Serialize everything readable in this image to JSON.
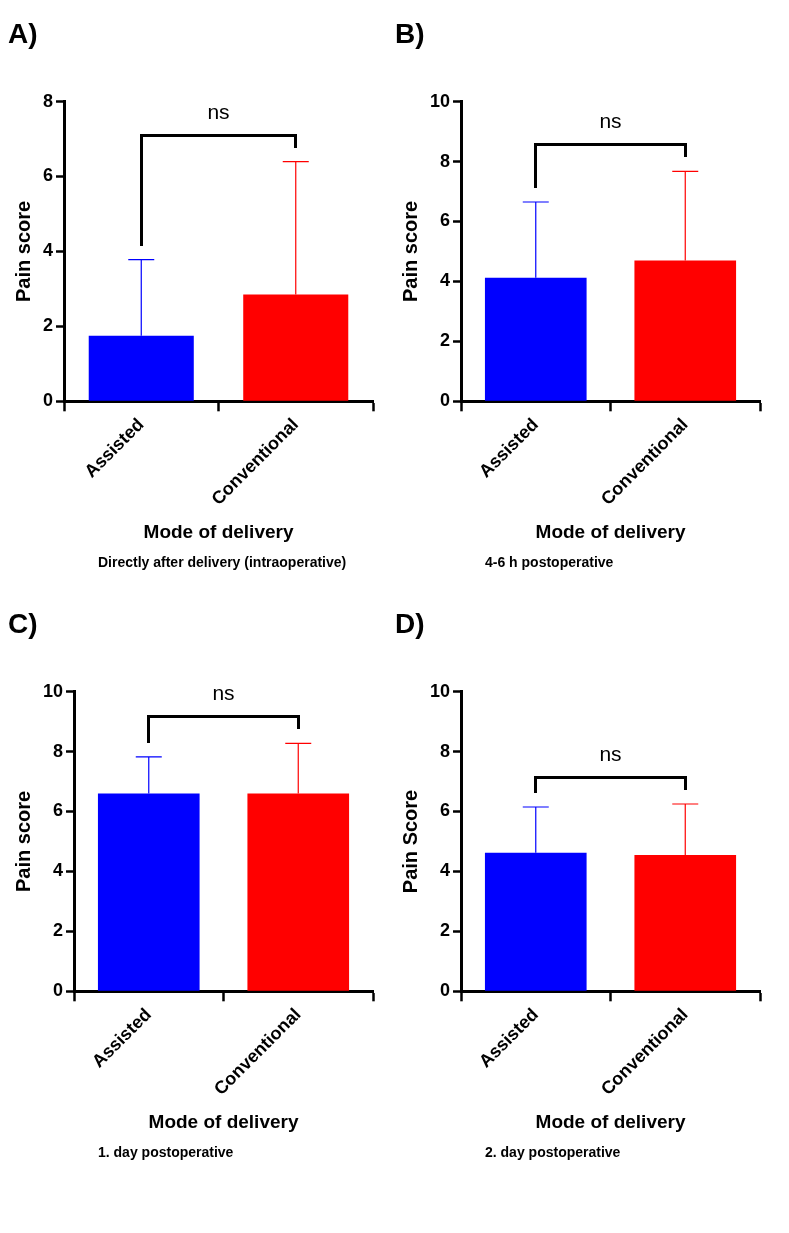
{
  "chart_data": [
    {
      "type": "bar",
      "title": "A)",
      "subtitle": "Directly after delivery (intraoperative)",
      "xlabel": "Mode of delivery",
      "ylabel": "Pain score",
      "categories": [
        "Assisted",
        "Conventional"
      ],
      "values": [
        1.75,
        2.85
      ],
      "colors": [
        "#0000ff",
        "#ff0000"
      ],
      "errors": [
        [
          1.75,
          3.78
        ],
        [
          2.85,
          6.4
        ]
      ],
      "ylim": [
        0,
        8
      ],
      "yticks": [
        0,
        2,
        4,
        6,
        8
      ],
      "grid": false,
      "legend": false,
      "annotations": [
        "ns"
      ]
    },
    {
      "type": "bar",
      "title": "B)",
      "subtitle": "4-6 h postoperative",
      "xlabel": "Mode of delivery",
      "ylabel": "Pain score",
      "categories": [
        "Assisted",
        "Conventional"
      ],
      "values": [
        4.12,
        4.7
      ],
      "colors": [
        "#0000ff",
        "#ff0000"
      ],
      "errors": [
        [
          4.12,
          6.65
        ],
        [
          4.7,
          7.67
        ]
      ],
      "ylim": [
        0,
        10
      ],
      "yticks": [
        0,
        2,
        4,
        6,
        8,
        10
      ],
      "grid": false,
      "legend": false,
      "annotations": [
        "ns"
      ]
    },
    {
      "type": "bar",
      "title": "C)",
      "subtitle": "1. day postoperative",
      "xlabel": "Mode of delivery",
      "ylabel": "Pain score",
      "categories": [
        "Assisted",
        "Conventional"
      ],
      "values": [
        6.6,
        6.6
      ],
      "colors": [
        "#0000ff",
        "#ff0000"
      ],
      "errors": [
        [
          6.6,
          7.82
        ],
        [
          6.6,
          8.27
        ]
      ],
      "ylim": [
        0,
        10
      ],
      "yticks": [
        0,
        2,
        4,
        6,
        8,
        10
      ],
      "grid": false,
      "legend": false,
      "annotations": [
        "ns"
      ]
    },
    {
      "type": "bar",
      "title": "D)",
      "subtitle": "2. day postoperative",
      "xlabel": "Mode of delivery",
      "ylabel": "Pain Score",
      "categories": [
        "Assisted",
        "Conventional"
      ],
      "values": [
        4.62,
        4.55
      ],
      "colors": [
        "#0000ff",
        "#ff0000"
      ],
      "errors": [
        [
          4.62,
          6.15
        ],
        [
          4.55,
          6.25
        ]
      ],
      "ylim": [
        0,
        10
      ],
      "yticks": [
        0,
        2,
        4,
        6,
        8,
        10
      ],
      "grid": false,
      "legend": false,
      "annotations": [
        "ns"
      ]
    }
  ]
}
